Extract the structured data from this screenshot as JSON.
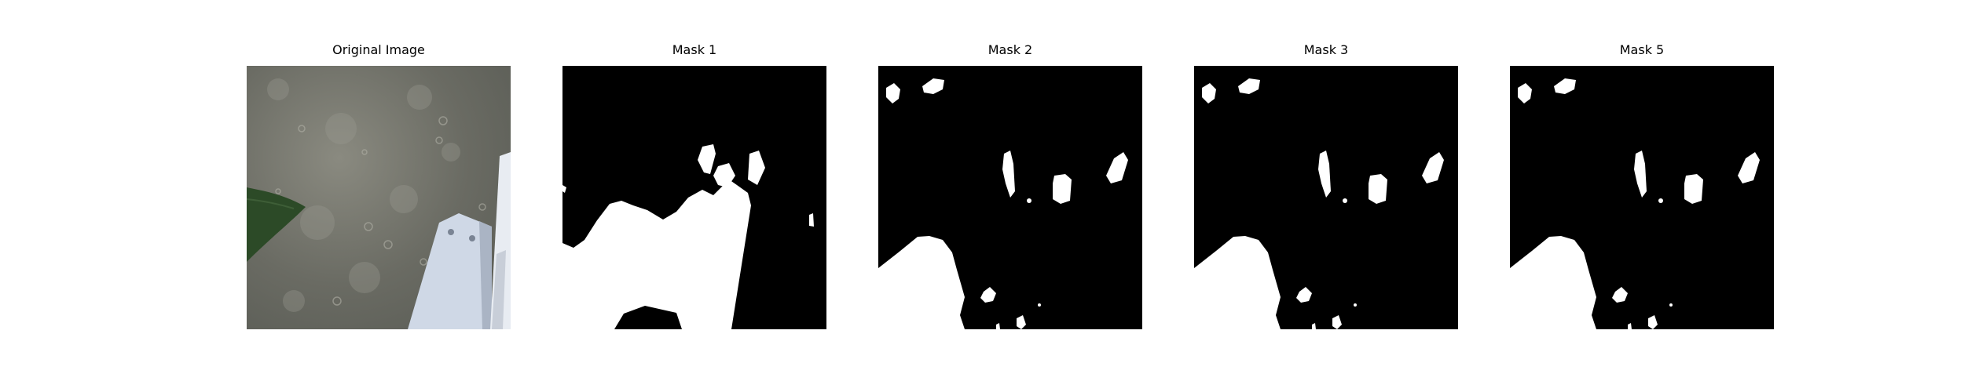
{
  "figure": {
    "panels": [
      {
        "title": "Original Image",
        "kind": "photo"
      },
      {
        "title": "Mask 1",
        "kind": "mask"
      },
      {
        "title": "Mask 2",
        "kind": "mask"
      },
      {
        "title": "Mask 3",
        "kind": "mask"
      },
      {
        "title": "Mask 5",
        "kind": "mask"
      }
    ]
  },
  "colors": {
    "mask_background": "#000000",
    "mask_foreground": "#ffffff",
    "photo_background": "#6f6f66",
    "leaf": "#2c4a27",
    "bracket": "#d5dde8"
  }
}
